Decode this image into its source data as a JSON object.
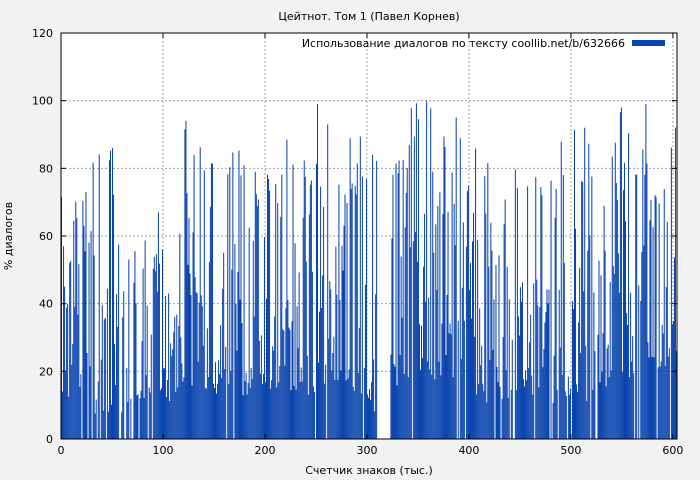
{
  "chart_data": {
    "type": "bar",
    "title": "Цейтнот. Том 1 (Павел Корнев)",
    "xlabel": "Счетчик знаков (тыс.)",
    "ylabel": "% диалогов",
    "xlim": [
      0,
      604
    ],
    "ylim": [
      0,
      120
    ],
    "x_ticks": [
      0,
      100,
      200,
      300,
      400,
      500,
      600
    ],
    "y_ticks": [
      0,
      20,
      40,
      60,
      80,
      100,
      120
    ],
    "grid": true,
    "legend": {
      "position": "top-right",
      "label": "Использование диалогов по тексту coollib.net/b/632666"
    },
    "colors": {
      "bar": "#0a44ad",
      "background": "#f2f2f2",
      "plot": "#ffffff",
      "grid": "#a0a0a0"
    },
    "bar_step": 1,
    "series": [
      {
        "name": "Использование диалогов по тексту coollib.net/b/632666",
        "segments": [
          {
            "x0": 0,
            "x1": 30,
            "base": 8,
            "amp": 60,
            "peak": 73,
            "empty_rate": 0.15
          },
          {
            "x0": 30,
            "x1": 90,
            "base": 5,
            "amp": 50,
            "peak": 86,
            "empty_rate": 0.25
          },
          {
            "x0": 90,
            "x1": 120,
            "base": 8,
            "amp": 45,
            "peak": 67,
            "empty_rate": 0.1
          },
          {
            "x0": 120,
            "x1": 200,
            "base": 12,
            "amp": 65,
            "peak": 94,
            "empty_rate": 0.05
          },
          {
            "x0": 200,
            "x1": 260,
            "base": 10,
            "amp": 70,
            "peak": 99,
            "empty_rate": 0.05
          },
          {
            "x0": 260,
            "x1": 300,
            "base": 12,
            "amp": 65,
            "peak": 93,
            "empty_rate": 0.05
          },
          {
            "x0": 300,
            "x1": 310,
            "base": 5,
            "amp": 50,
            "peak": 84,
            "empty_rate": 0.1
          },
          {
            "x0": 310,
            "x1": 322,
            "base": 0,
            "amp": 0,
            "peak": 0,
            "empty_rate": 1
          },
          {
            "x0": 322,
            "x1": 380,
            "base": 15,
            "amp": 70,
            "peak": 100,
            "empty_rate": 0.03
          },
          {
            "x0": 380,
            "x1": 460,
            "base": 10,
            "amp": 65,
            "peak": 95,
            "empty_rate": 0.08
          },
          {
            "x0": 460,
            "x1": 530,
            "base": 10,
            "amp": 65,
            "peak": 92,
            "empty_rate": 0.08
          },
          {
            "x0": 530,
            "x1": 604,
            "base": 15,
            "amp": 70,
            "peak": 99,
            "empty_rate": 0.05
          }
        ]
      }
    ]
  }
}
